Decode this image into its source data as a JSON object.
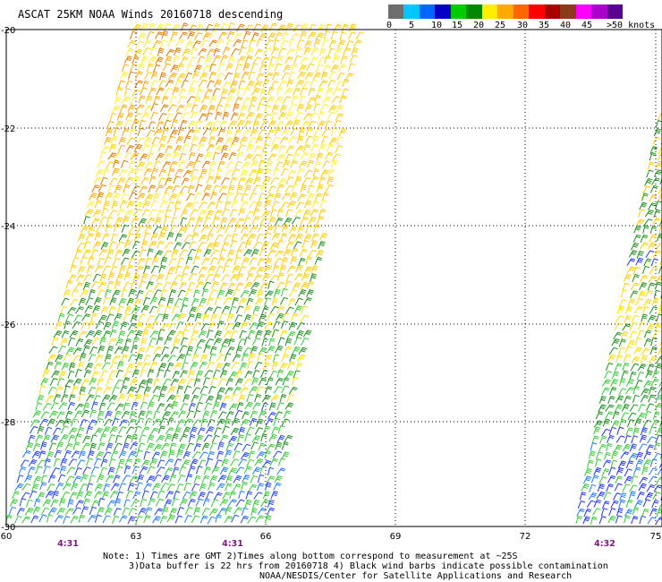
{
  "title": "ASCAT 25KM NOAA Winds 20160718 descending",
  "legend": {
    "labels": [
      "0",
      "5",
      "10",
      "15",
      "20",
      "25",
      "30",
      "35",
      "40",
      "45",
      ">50 knots"
    ],
    "colors": [
      "#6e6e6e",
      "#00c8ff",
      "#0066ff",
      "#0000c8",
      "#00cc00",
      "#008800",
      "#ffee00",
      "#ffaa00",
      "#ff6600",
      "#ff0000",
      "#aa0000",
      "#8b3a1a",
      "#ff00ff",
      "#aa00cc",
      "#5a0090"
    ]
  },
  "axes": {
    "lat_labels": [
      "-20",
      "-22",
      "-24",
      "-26",
      "-28",
      "-30"
    ],
    "lon_labels": [
      "60",
      "63",
      "66",
      "69",
      "72",
      "75"
    ]
  },
  "time_labels": [
    "4:31",
    "4:31",
    "4:32"
  ],
  "notes": {
    "line1": "Note: 1) Times are GMT 2)Times along bottom correspond to measurement at ~25S",
    "line2": "3)Data buffer is 22 hrs from 20160718 4) Black wind barbs indicate possible contamination",
    "line3": "NOAA/NESDIS/Center for Satellite Applications and Research"
  },
  "swaths": [
    {
      "name": "west-swath"
    },
    {
      "name": "east-swath"
    }
  ]
}
